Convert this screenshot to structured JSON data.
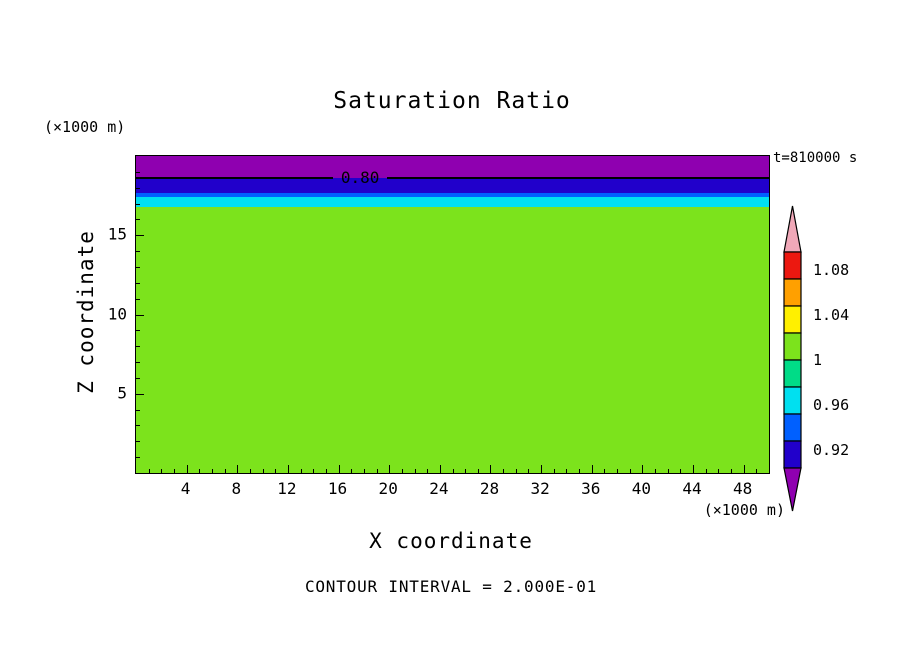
{
  "chart_data": {
    "type": "heatmap",
    "title": "Saturation Ratio",
    "timestamp": "t=810000 s",
    "xlabel": "X coordinate",
    "ylabel": "Z coordinate",
    "x_units": "(×1000 m)",
    "y_units": "(×1000 m)",
    "caption": "CONTOUR INTERVAL = 2.000E-01",
    "contour_label": "0.80",
    "x_range": [
      0,
      50
    ],
    "y_range": [
      0,
      20
    ],
    "x_ticks": [
      4,
      8,
      12,
      16,
      20,
      24,
      28,
      32,
      36,
      40,
      44,
      48
    ],
    "y_ticks": [
      5,
      10,
      15
    ],
    "grid": false,
    "legend_position": "right-colorbar",
    "layers": [
      {
        "z_from": 18.6,
        "z_to": 20.0,
        "color": "purple",
        "description": "top band, saturation below 0.80 contour"
      },
      {
        "z_from": 17.65,
        "z_to": 18.6,
        "color": "navy"
      },
      {
        "z_from": 17.4,
        "z_to": 17.65,
        "color": "blue"
      },
      {
        "z_from": 16.8,
        "z_to": 17.4,
        "color": "cyan"
      },
      {
        "z_from": 0.0,
        "z_to": 16.8,
        "color": "green",
        "description": "bulk of domain, saturation ratio = 1"
      }
    ],
    "labeled_contour": {
      "value": "0.80",
      "z": 18.6,
      "x_label_position": 17.7
    },
    "colorbar": {
      "labels_top_to_bottom": [
        "1.08",
        "1.04",
        "1",
        "0.96",
        "0.92"
      ],
      "segments_top_to_bottom": [
        "red",
        "orange",
        "yellow",
        "green",
        "teal",
        "cyan",
        "blue",
        "navy"
      ],
      "top_arrow": "pink",
      "bottom_arrow": "purple"
    },
    "palette": {
      "pink": "#F0A8B8",
      "red": "#EC1810",
      "orange": "#FFA000",
      "yellow": "#FFF000",
      "green": "#7CE31C",
      "teal": "#00DC87",
      "cyan": "#00E0F0",
      "blue": "#0060FF",
      "navy": "#2100CB",
      "purple": "#8F00B0"
    }
  }
}
